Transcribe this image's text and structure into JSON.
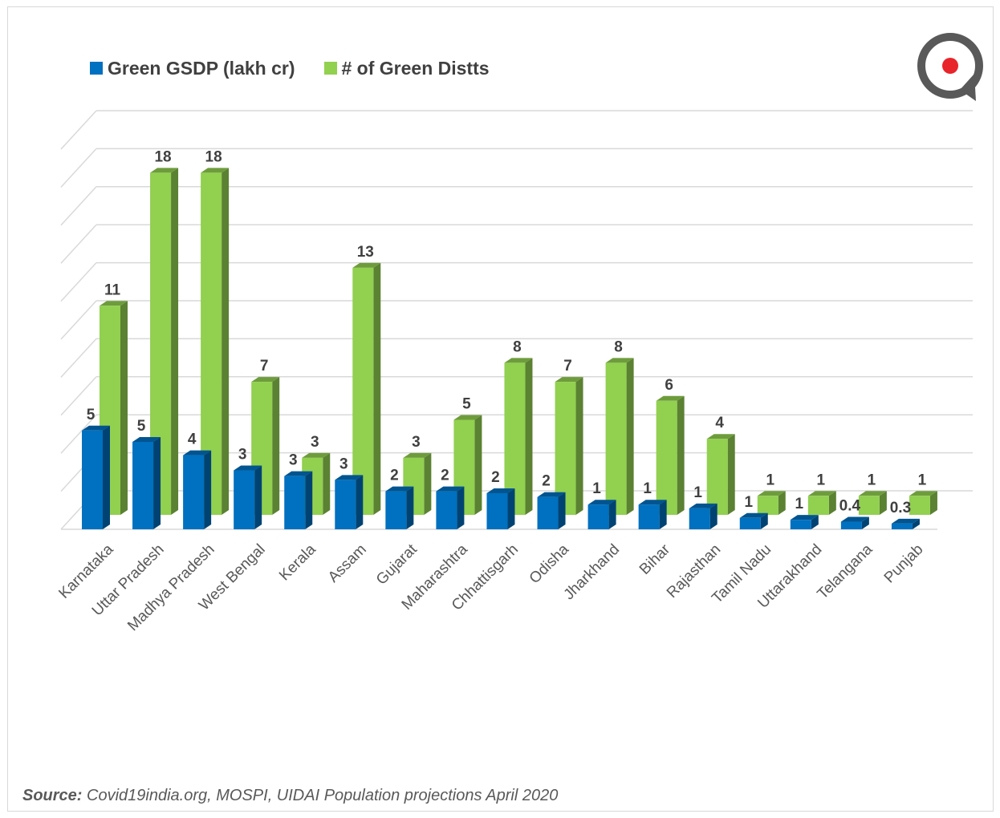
{
  "legend": {
    "series1": {
      "label": "Green GSDP (lakh cr)",
      "color": "#0070c0"
    },
    "series2": {
      "label": "# of Green Distts",
      "color": "#92d050"
    }
  },
  "logo": {
    "icon": "magnifier-target-icon",
    "accent": "#e8252b",
    "ring": "#595959"
  },
  "chart_data": {
    "type": "bar",
    "style": "3d-clustered-column",
    "grid": true,
    "legend_position": "top-left",
    "categories": [
      "Karnataka",
      "Uttar Pradesh",
      "Madhya Pradesh",
      "West Bengal",
      "Kerala",
      "Assam",
      "Gujarat",
      "Maharashtra",
      "Chhattisgarh",
      "Odisha",
      "Jharkhand",
      "Bihar",
      "Rajasthan",
      "Tamil Nadu",
      "Uttarakhand",
      "Telangana",
      "Punjab"
    ],
    "series": [
      {
        "name": "Green GSDP (lakh cr)",
        "color": "#0070c0",
        "values": [
          5.2,
          4.6,
          3.9,
          3.1,
          2.8,
          2.6,
          2.0,
          2.0,
          1.9,
          1.7,
          1.3,
          1.3,
          1.1,
          0.6,
          0.5,
          0.4,
          0.3
        ],
        "labels": [
          "5",
          "5",
          "4",
          "3",
          "3",
          "3",
          "2",
          "2",
          "2",
          "2",
          "1",
          "1",
          "1",
          "1",
          "1",
          "0.4",
          "0.3"
        ]
      },
      {
        "name": "# of Green Distts",
        "color": "#92d050",
        "values": [
          11,
          18,
          18,
          7,
          3,
          13,
          3,
          5,
          8,
          7,
          8,
          6,
          4,
          1,
          1,
          1,
          1
        ],
        "labels": [
          "11",
          "18",
          "18",
          "7",
          "3",
          "13",
          "3",
          "5",
          "8",
          "7",
          "8",
          "6",
          "4",
          "1",
          "1",
          "1",
          "1"
        ]
      }
    ],
    "ylim": [
      0,
      20
    ]
  },
  "source": {
    "label": "Source:",
    "text": " Covid19india.org, MOSPI, UIDAI Population projections April 2020"
  }
}
